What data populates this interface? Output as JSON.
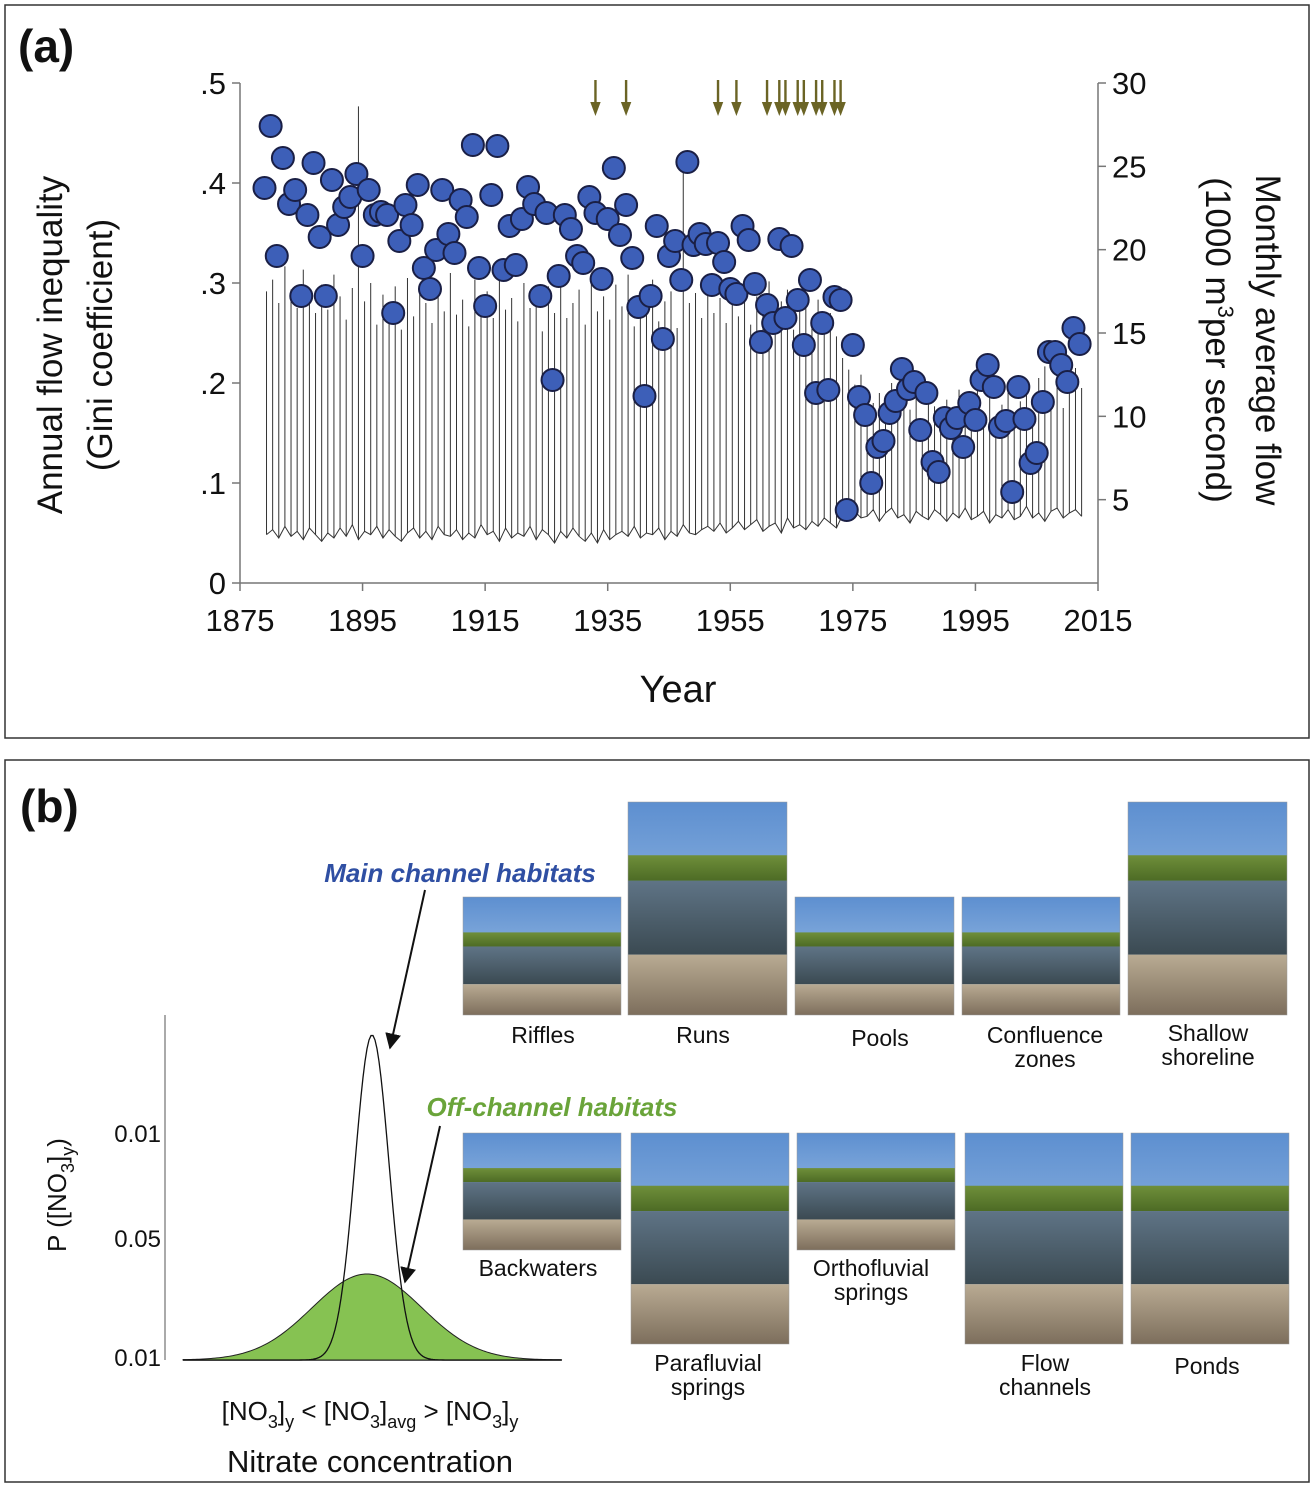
{
  "chart_data": {
    "type": "scatter",
    "panel_label": "(a)",
    "x_label": "Year",
    "y_label": [
      "Annual flow inequality",
      "(Gini coefficient)"
    ],
    "y2_label": [
      "Monthly average flow",
      "(1000 m",
      "3",
      "per second)"
    ],
    "xlim": [
      1875,
      2015
    ],
    "xticks": [
      1875,
      1895,
      1915,
      1935,
      1955,
      1975,
      1995,
      2015
    ],
    "ylim": [
      0,
      0.5
    ],
    "yticks": [
      0,
      {
        "value": 0.1,
        "label": ".1"
      },
      {
        "value": 0.2,
        "label": ".2"
      },
      {
        "value": 0.3,
        "label": ".3"
      },
      {
        "value": 0.4,
        "label": ".4"
      },
      {
        "value": 0.5,
        "label": ".5"
      }
    ],
    "y2lim": [
      0,
      30
    ],
    "y2ticks": [
      5,
      10,
      15,
      20,
      25,
      30
    ],
    "x": [
      1879,
      1880,
      1881,
      1882,
      1883,
      1884,
      1885,
      1886,
      1887,
      1888,
      1889,
      1890,
      1891,
      1892,
      1893,
      1894,
      1895,
      1896,
      1897,
      1898,
      1899,
      1900,
      1901,
      1902,
      1903,
      1904,
      1905,
      1906,
      1907,
      1908,
      1909,
      1910,
      1911,
      1912,
      1913,
      1914,
      1915,
      1916,
      1917,
      1918,
      1919,
      1920,
      1921,
      1922,
      1923,
      1924,
      1925,
      1926,
      1927,
      1928,
      1929,
      1930,
      1931,
      1932,
      1933,
      1934,
      1935,
      1936,
      1937,
      1938,
      1939,
      1940,
      1941,
      1942,
      1943,
      1944,
      1945,
      1946,
      1947,
      1948,
      1949,
      1950,
      1951,
      1952,
      1953,
      1954,
      1955,
      1956,
      1957,
      1958,
      1959,
      1960,
      1961,
      1962,
      1963,
      1964,
      1965,
      1966,
      1967,
      1968,
      1969,
      1970,
      1971,
      1972,
      1973,
      1974,
      1975,
      1976,
      1977,
      1978,
      1979,
      1980,
      1981,
      1982,
      1983,
      1984,
      1985,
      1986,
      1987,
      1988,
      1989,
      1990,
      1991,
      1992,
      1993,
      1994,
      1995,
      1996,
      1997,
      1998,
      1999,
      2000,
      2001,
      2002,
      2003,
      2004,
      2005,
      2006,
      2007,
      2008,
      2009,
      2010,
      2011,
      2012
    ],
    "series": [
      {
        "color": "#3d5fb8",
        "values": [
          0.395,
          0.457,
          0.327,
          0.425,
          0.379,
          0.393,
          0.287,
          0.368,
          0.42,
          0.346,
          0.287,
          0.403,
          0.358,
          0.376,
          0.386,
          0.409,
          0.327,
          0.393,
          0.368,
          0.371,
          0.368,
          0.27,
          0.342,
          0.378,
          0.358,
          0.398,
          0.315,
          0.294,
          0.333,
          0.393,
          0.349,
          0.33,
          0.383,
          0.366,
          0.438,
          0.315,
          0.277,
          0.388,
          0.437,
          0.313,
          0.357,
          0.318,
          0.364,
          0.396,
          0.379,
          0.287,
          0.37,
          0.203,
          0.307,
          0.368,
          0.354,
          0.327,
          0.32,
          0.386,
          0.37,
          0.304,
          0.364,
          0.415,
          0.348,
          0.378,
          0.325,
          0.276,
          0.187,
          0.287,
          0.357,
          0.244,
          0.327,
          0.342,
          0.303,
          0.421,
          0.338,
          0.349,
          0.339,
          0.298,
          0.34,
          0.321,
          0.294,
          0.289,
          0.357,
          0.343,
          0.299,
          0.241,
          0.278,
          0.26,
          0.344,
          0.265,
          0.337,
          0.283,
          0.238,
          0.303,
          0.19,
          0.26,
          0.193,
          0.286,
          0.283,
          0.073,
          0.238,
          0.186,
          0.168,
          0.1,
          0.136,
          0.142,
          0.17,
          0.182,
          0.214,
          0.194,
          0.201,
          0.153,
          0.19,
          0.121,
          0.111,
          0.165,
          0.155,
          0.165,
          0.136,
          0.18,
          0.163,
          0.203,
          0.218,
          0.196,
          0.156,
          0.162,
          0.091,
          0.196,
          0.164,
          0.12,
          0.13,
          0.181,
          0.231,
          0.231,
          0.218,
          0.201,
          0.255,
          0.239
        ]
      },
      {
        "color": "#333333",
        "axis": "y2",
        "values": [
          17.5,
          18.2,
          16.8,
          19.0,
          17.6,
          16.5,
          18.8,
          17.0,
          16.2,
          17.9,
          16.4,
          18.5,
          17.2,
          15.8,
          17.7,
          28.6,
          16.9,
          18.0,
          15.5,
          17.3,
          16.6,
          17.8,
          15.2,
          18.3,
          16.0,
          17.4,
          16.8,
          15.6,
          17.9,
          16.3,
          18.6,
          16.1,
          17.0,
          15.4,
          18.2,
          16.7,
          17.5,
          15.9,
          18.8,
          16.4,
          17.1,
          15.7,
          18.0,
          16.5,
          17.3,
          15.1,
          17.8,
          16.2,
          18.4,
          15.9,
          16.8,
          17.6,
          15.5,
          18.1,
          16.3,
          17.2,
          15.8,
          17.9,
          16.6,
          18.5,
          15.4,
          17.0,
          16.1,
          18.2,
          15.7,
          16.9,
          17.5,
          15.3,
          25.6,
          16.8,
          17.4,
          15.9,
          18.0,
          16.2,
          17.1,
          15.6,
          18.3,
          16.0,
          17.7,
          15.5,
          17.2,
          16.4,
          18.1,
          15.8,
          16.9,
          17.6,
          15.2,
          17.3,
          16.5,
          15.9,
          17.0,
          15.4,
          16.2,
          14.8,
          13.5,
          12.8,
          11.9,
          12.5,
          11.6,
          10.8,
          11.4,
          10.2,
          12.0,
          10.9,
          11.8,
          10.4,
          11.2,
          9.8,
          11.5,
          10.6,
          9.9,
          11.0,
          10.3,
          11.6,
          9.7,
          10.8,
          12.1,
          10.1,
          11.3,
          9.6,
          10.7,
          11.9,
          9.5,
          10.9,
          11.4,
          10.2,
          12.3,
          13.0,
          11.1,
          12.6,
          10.5,
          11.8,
          12.9,
          11.7
        ]
      },
      {
        "color": "#333333",
        "axis": "y2",
        "values": [
          2.9,
          3.2,
          2.7,
          3.4,
          2.8,
          3.1,
          2.6,
          3.3,
          2.9,
          2.5,
          3.0,
          2.7,
          3.3,
          2.8,
          3.5,
          2.6,
          3.1,
          2.9,
          3.4,
          2.7,
          3.2,
          2.8,
          2.5,
          3.0,
          3.3,
          2.7,
          3.1,
          2.6,
          3.4,
          2.9,
          2.8,
          3.2,
          2.6,
          3.0,
          2.7,
          3.5,
          2.9,
          3.1,
          2.5,
          3.3,
          2.7,
          3.0,
          2.8,
          3.4,
          2.6,
          3.2,
          2.9,
          2.4,
          3.1,
          2.7,
          3.3,
          2.8,
          2.5,
          3.0,
          2.4,
          3.2,
          2.6,
          2.9,
          3.1,
          2.8,
          3.4,
          2.7,
          3.0,
          2.9,
          3.3,
          2.6,
          3.1,
          2.8,
          3.5,
          3.0,
          2.9,
          3.2,
          3.4,
          3.1,
          3.6,
          3.0,
          3.3,
          3.7,
          3.2,
          3.5,
          3.8,
          3.1,
          3.4,
          3.6,
          3.0,
          3.9,
          3.3,
          3.5,
          3.2,
          3.7,
          3.4,
          3.9,
          3.6,
          3.3,
          4.1,
          3.8,
          4.3,
          3.9,
          4.0,
          4.4,
          3.7,
          4.2,
          4.5,
          3.9,
          4.1,
          3.6,
          4.3,
          4.0,
          3.8,
          4.4,
          4.1,
          3.7,
          4.2,
          3.9,
          4.5,
          3.8,
          4.0,
          4.3,
          3.6,
          4.1,
          3.9,
          4.4,
          3.8,
          4.0,
          4.6,
          3.9,
          4.2,
          3.7,
          4.3,
          4.5,
          3.9,
          4.2,
          4.4,
          4.0
        ]
      }
    ],
    "arrows": {
      "color": "#6b6425",
      "x": [
        1933,
        1938,
        1953,
        1956,
        1961,
        1963,
        1964,
        1966,
        1967,
        1969,
        1970,
        1972,
        1973
      ]
    }
  },
  "panel_b": {
    "panel_label": "(b)",
    "y_label_parts": [
      "P ([NO",
      "3",
      "]",
      "y",
      ")"
    ],
    "y_tick_labels": [
      "0.01",
      "0.05",
      "0.01"
    ],
    "x_label_parts": [
      "[NO",
      "3",
      "]",
      "y",
      " < [NO",
      "3",
      "]",
      "avg",
      " > [NO",
      "3",
      "]",
      "y"
    ],
    "x_title": "Nitrate concentration",
    "main_label": "Main channel habitats",
    "off_label": "Off-channel habitats",
    "main_habitats": [
      [
        "Riffles"
      ],
      [
        "Runs"
      ],
      [
        "Pools"
      ],
      [
        "Confluence",
        "zones"
      ],
      [
        "Shallow",
        "shoreline"
      ]
    ],
    "off_habitats": [
      [
        "Backwaters"
      ],
      [
        "Parafluvial",
        "springs"
      ],
      [
        "Orthofluvial",
        "springs"
      ],
      [
        "Flow",
        "channels"
      ],
      [
        "Ponds"
      ]
    ]
  }
}
